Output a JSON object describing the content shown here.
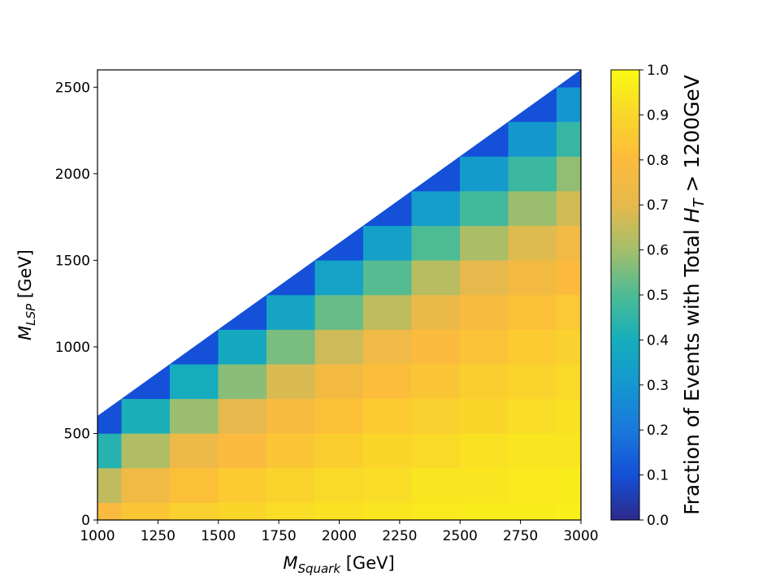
{
  "chart_data": {
    "type": "heatmap",
    "x": [
      1000,
      1200,
      1400,
      1600,
      1800,
      2000,
      2200,
      2400,
      2600,
      2800,
      3000
    ],
    "y": [
      0,
      200,
      400,
      600,
      800,
      1000,
      1200,
      1400,
      1600,
      1800,
      2000,
      2200,
      2400,
      2600
    ],
    "z": [
      [
        0.78,
        0.84,
        0.88,
        0.9,
        0.92,
        0.93,
        0.94,
        0.95,
        0.96,
        0.96,
        0.97
      ],
      [
        0.64,
        0.75,
        0.82,
        0.86,
        0.89,
        0.91,
        0.92,
        0.94,
        0.94,
        0.95,
        0.96
      ],
      [
        0.43,
        0.62,
        0.73,
        0.79,
        0.84,
        0.87,
        0.9,
        0.91,
        0.93,
        0.94,
        0.94
      ],
      [
        0.1,
        0.41,
        0.59,
        0.7,
        0.78,
        0.82,
        0.86,
        0.88,
        0.9,
        0.92,
        0.93
      ],
      [
        null,
        0.1,
        0.39,
        0.57,
        0.68,
        0.76,
        0.81,
        0.84,
        0.87,
        0.89,
        0.91
      ],
      [
        null,
        null,
        0.1,
        0.38,
        0.55,
        0.66,
        0.74,
        0.79,
        0.83,
        0.86,
        0.88
      ],
      [
        null,
        null,
        null,
        0.1,
        0.36,
        0.53,
        0.64,
        0.72,
        0.78,
        0.82,
        0.85
      ],
      [
        null,
        null,
        null,
        null,
        0.1,
        0.35,
        0.51,
        0.63,
        0.7,
        0.76,
        0.8
      ],
      [
        null,
        null,
        null,
        null,
        null,
        0.1,
        0.34,
        0.5,
        0.61,
        0.69,
        0.75
      ],
      [
        null,
        null,
        null,
        null,
        null,
        null,
        0.1,
        0.33,
        0.48,
        0.59,
        0.67
      ],
      [
        null,
        null,
        null,
        null,
        null,
        null,
        null,
        0.1,
        0.32,
        0.47,
        0.58
      ],
      [
        null,
        null,
        null,
        null,
        null,
        null,
        null,
        null,
        0.1,
        0.31,
        0.46
      ],
      [
        null,
        null,
        null,
        null,
        null,
        null,
        null,
        null,
        null,
        0.1,
        0.3
      ],
      [
        null,
        null,
        null,
        null,
        null,
        null,
        null,
        null,
        null,
        null,
        0.1
      ]
    ],
    "xlim": [
      1000,
      3000
    ],
    "ylim": [
      0,
      2600
    ],
    "xticks": [
      1000,
      1250,
      1500,
      1750,
      2000,
      2250,
      2500,
      2750,
      3000
    ],
    "yticks": [
      0,
      500,
      1000,
      1500,
      2000,
      2500
    ],
    "xlabel": [
      "M",
      "Squark",
      " [GeV]"
    ],
    "ylabel": [
      "M",
      "LSP",
      " [GeV]"
    ],
    "colorbar": {
      "label": [
        "Fraction of Events with Total ",
        "H",
        "T",
        " > 1200GeV"
      ],
      "clim": [
        0,
        1
      ],
      "ticks": [
        {
          "value": 0,
          "label": "0.0"
        },
        0.1,
        0.2,
        0.3,
        0.4,
        0.5,
        0.6,
        0.7,
        0.8,
        0.9,
        {
          "value": 1,
          "label": "1.0"
        }
      ],
      "colormap": [
        "#2c2a8a",
        "#1450d8",
        "#1a78dc",
        "#1496d0",
        "#15aebc",
        "#4dbb94",
        "#a4be6a",
        "#e6b94c",
        "#fcbb3c",
        "#fad62a",
        "#f9fb14"
      ]
    }
  }
}
